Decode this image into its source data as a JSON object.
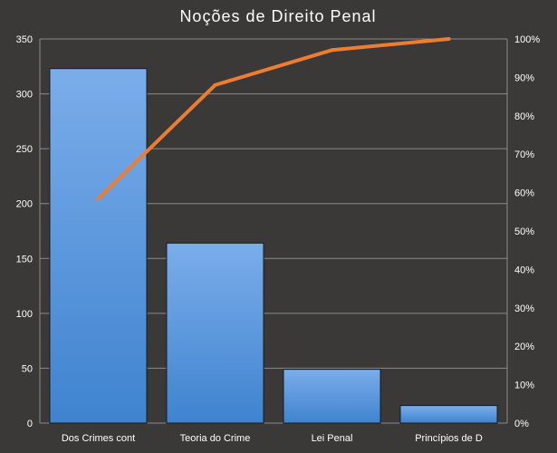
{
  "chart_data": {
    "type": "bar",
    "title": "Noções de Direito Penal",
    "categories": [
      "Dos Crimes cont",
      "Teoria do Crime",
      "Lei Penal",
      "Princípios de D"
    ],
    "series": [
      {
        "values": [
          323,
          164,
          49,
          16
        ],
        "axis": "left",
        "kind": "bar"
      },
      {
        "values": [
          58.4,
          88.0,
          97.1,
          100.0
        ],
        "axis": "right",
        "kind": "line"
      }
    ],
    "left_axis": {
      "ylim": [
        0,
        350
      ],
      "ticks": [
        "0",
        "50",
        "100",
        "150",
        "200",
        "250",
        "300",
        "350"
      ]
    },
    "right_axis": {
      "ylim": [
        0,
        100
      ],
      "ticks": [
        "0%",
        "10%",
        "20%",
        "30%",
        "40%",
        "50%",
        "60%",
        "70%",
        "80%",
        "90%",
        "100%"
      ]
    },
    "grid": true,
    "legend": "none",
    "colors": {
      "background": "#3b3938",
      "plot_border": "#8a8a8a",
      "bar_top": "#7badea",
      "bar_bottom": "#3f83cf",
      "bar_stroke": "#1a1a1a",
      "line": "#ed7d31",
      "text": "#ffffff"
    }
  }
}
